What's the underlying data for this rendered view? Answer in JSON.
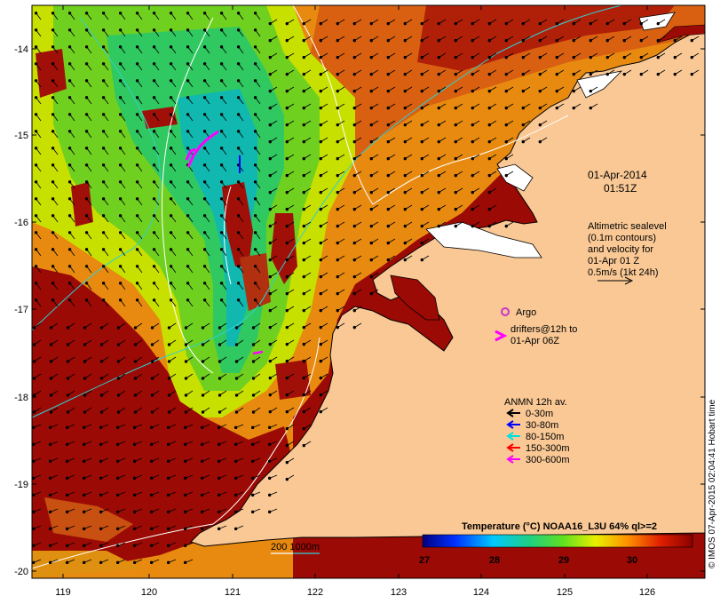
{
  "map": {
    "lon_ticks": [
      "119",
      "120",
      "121",
      "122",
      "123",
      "124",
      "125",
      "126"
    ],
    "lat_ticks": [
      "-14",
      "-15",
      "-16",
      "-17",
      "-18",
      "-19",
      "-20"
    ],
    "date_label": "01-Apr-2014",
    "time_label": "01:51Z",
    "altimetry_note": [
      "Altimetric sealevel",
      "(0.1m contours)",
      "and velocity for",
      "01-Apr 01 Z",
      "0.5m/s (1kt 24h)"
    ],
    "argo_label": "Argo",
    "drifters_label": [
      "drifters@12h to",
      "01-Apr 06Z"
    ],
    "anmn_title": "ANMN 12h av.",
    "anmn_legend": [
      {
        "label": "0-30m",
        "color": "#000000"
      },
      {
        "label": "30-80m",
        "color": "#0000ff"
      },
      {
        "label": "80-150m",
        "color": "#00e0e0"
      },
      {
        "label": "150-300m",
        "color": "#ff0000"
      },
      {
        "label": "300-600m",
        "color": "#ff00ff"
      }
    ],
    "isobath_label": "200  1000m",
    "colorbar_title": "Temperature (°C) NOAA16_L3U 64% ql>=2",
    "colorbar_ticks": [
      "27",
      "28",
      "29",
      "30"
    ],
    "credit": "© IMOS 07-Apr-2015 02:04:41 Hobart time",
    "colors": {
      "land": "#f9c895",
      "hot": "#9b0a05",
      "argo": "#cc33cc",
      "drifter": "#ff00ff"
    }
  }
}
